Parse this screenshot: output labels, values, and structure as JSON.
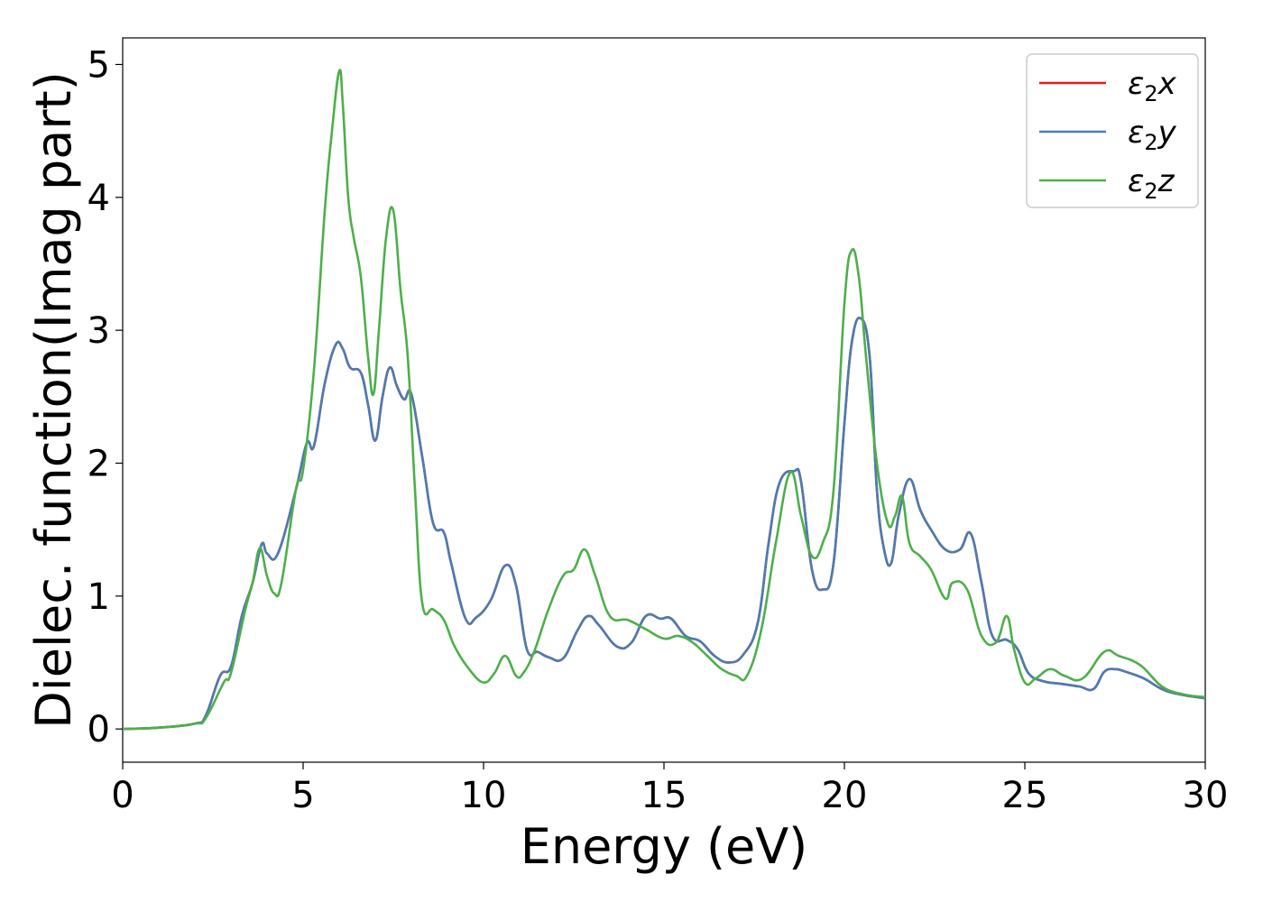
{
  "chart_data": {
    "type": "line",
    "title": "",
    "xlabel": "Energy (eV)",
    "ylabel": "Dielec. function(Imag part)",
    "xlim": [
      0,
      30
    ],
    "ylim": [
      -0.25,
      5.2
    ],
    "xticks": [
      0,
      5,
      10,
      15,
      20,
      25,
      30
    ],
    "xtick_labels": [
      "0",
      "5",
      "10",
      "15",
      "20",
      "25",
      "30"
    ],
    "yticks": [
      0,
      1,
      2,
      3,
      4,
      5
    ],
    "ytick_labels": [
      "0",
      "1",
      "2",
      "3",
      "4",
      "5"
    ],
    "grid": false,
    "legend_position": "top-right",
    "series": [
      {
        "name": "ε2x",
        "legend_base": "ε",
        "legend_sub": "2",
        "legend_suffix": "x",
        "color": "#e41a1c",
        "x": [
          0,
          1,
          2,
          2.3,
          2.7,
          3.0,
          3.3,
          3.6,
          3.85,
          4.0,
          4.3,
          4.8,
          5.1,
          5.3,
          5.6,
          5.9,
          6.1,
          6.3,
          6.6,
          6.8,
          7.0,
          7.2,
          7.4,
          7.6,
          7.8,
          8.0,
          8.3,
          8.6,
          8.9,
          9.1,
          9.5,
          9.8,
          10.2,
          10.6,
          10.9,
          11.2,
          11.5,
          11.8,
          12.2,
          12.6,
          12.9,
          13.2,
          13.7,
          14.1,
          14.5,
          14.9,
          15.2,
          15.6,
          16.0,
          16.4,
          16.8,
          17.2,
          17.6,
          17.9,
          18.2,
          18.6,
          18.8,
          19.1,
          19.4,
          19.7,
          20.0,
          20.2,
          20.45,
          20.7,
          20.9,
          21.1,
          21.3,
          21.5,
          21.8,
          22.1,
          22.4,
          22.8,
          23.2,
          23.5,
          23.8,
          24.1,
          24.5,
          24.8,
          25.1,
          25.5,
          26.0,
          26.5,
          26.9,
          27.2,
          27.5,
          27.8,
          28.3,
          28.8,
          29.3,
          30
        ],
        "values": [
          0,
          0.01,
          0.04,
          0.1,
          0.4,
          0.47,
          0.85,
          1.1,
          1.39,
          1.32,
          1.32,
          1.8,
          2.15,
          2.13,
          2.6,
          2.89,
          2.86,
          2.72,
          2.68,
          2.44,
          2.17,
          2.5,
          2.72,
          2.58,
          2.48,
          2.52,
          2.05,
          1.55,
          1.48,
          1.25,
          0.83,
          0.84,
          0.97,
          1.23,
          1.08,
          0.6,
          0.58,
          0.54,
          0.53,
          0.74,
          0.85,
          0.78,
          0.62,
          0.65,
          0.85,
          0.83,
          0.83,
          0.7,
          0.66,
          0.55,
          0.5,
          0.56,
          0.8,
          1.4,
          1.85,
          1.94,
          1.86,
          1.2,
          1.05,
          1.25,
          2.3,
          2.9,
          3.09,
          2.8,
          1.8,
          1.35,
          1.25,
          1.6,
          1.88,
          1.65,
          1.5,
          1.35,
          1.35,
          1.47,
          1.1,
          0.7,
          0.67,
          0.6,
          0.42,
          0.36,
          0.34,
          0.32,
          0.3,
          0.43,
          0.45,
          0.43,
          0.38,
          0.3,
          0.26,
          0.23
        ]
      },
      {
        "name": "ε2y",
        "legend_base": "ε",
        "legend_sub": "2",
        "legend_suffix": "y",
        "color": "#4a7cb3",
        "x": [
          0,
          1,
          2,
          2.3,
          2.7,
          3.0,
          3.3,
          3.6,
          3.85,
          4.0,
          4.3,
          4.8,
          5.1,
          5.3,
          5.6,
          5.9,
          6.1,
          6.3,
          6.6,
          6.8,
          7.0,
          7.2,
          7.4,
          7.6,
          7.8,
          8.0,
          8.3,
          8.6,
          8.9,
          9.1,
          9.5,
          9.8,
          10.2,
          10.6,
          10.9,
          11.2,
          11.5,
          11.8,
          12.2,
          12.6,
          12.9,
          13.2,
          13.7,
          14.1,
          14.5,
          14.9,
          15.2,
          15.6,
          16.0,
          16.4,
          16.8,
          17.2,
          17.6,
          17.9,
          18.2,
          18.6,
          18.8,
          19.1,
          19.4,
          19.7,
          20.0,
          20.2,
          20.45,
          20.7,
          20.9,
          21.1,
          21.3,
          21.5,
          21.8,
          22.1,
          22.4,
          22.8,
          23.2,
          23.5,
          23.8,
          24.1,
          24.5,
          24.8,
          25.1,
          25.5,
          26.0,
          26.5,
          26.9,
          27.2,
          27.5,
          27.8,
          28.3,
          28.8,
          29.3,
          30
        ],
        "values": [
          0,
          0.01,
          0.04,
          0.1,
          0.4,
          0.47,
          0.85,
          1.1,
          1.39,
          1.32,
          1.32,
          1.8,
          2.15,
          2.13,
          2.6,
          2.89,
          2.86,
          2.72,
          2.68,
          2.44,
          2.17,
          2.5,
          2.72,
          2.58,
          2.48,
          2.52,
          2.05,
          1.55,
          1.48,
          1.25,
          0.83,
          0.84,
          0.97,
          1.23,
          1.08,
          0.6,
          0.58,
          0.54,
          0.53,
          0.74,
          0.85,
          0.78,
          0.62,
          0.65,
          0.85,
          0.83,
          0.83,
          0.7,
          0.66,
          0.55,
          0.5,
          0.56,
          0.8,
          1.4,
          1.85,
          1.94,
          1.86,
          1.2,
          1.05,
          1.25,
          2.3,
          2.9,
          3.09,
          2.8,
          1.8,
          1.35,
          1.25,
          1.6,
          1.88,
          1.65,
          1.5,
          1.35,
          1.35,
          1.47,
          1.1,
          0.7,
          0.67,
          0.6,
          0.42,
          0.36,
          0.34,
          0.32,
          0.3,
          0.43,
          0.45,
          0.43,
          0.38,
          0.3,
          0.26,
          0.23
        ]
      },
      {
        "name": "ε2z",
        "legend_base": "ε",
        "legend_sub": "2",
        "legend_suffix": "z",
        "color": "#4daf4a",
        "x": [
          0,
          1,
          2,
          2.3,
          2.8,
          3.0,
          3.4,
          3.6,
          3.8,
          4.0,
          4.2,
          4.4,
          4.8,
          5.0,
          5.3,
          5.6,
          5.8,
          6.0,
          6.1,
          6.25,
          6.4,
          6.6,
          6.8,
          6.95,
          7.1,
          7.3,
          7.5,
          7.7,
          7.9,
          8.1,
          8.3,
          8.6,
          8.9,
          9.2,
          9.6,
          10.0,
          10.3,
          10.6,
          10.9,
          11.1,
          11.4,
          11.8,
          12.2,
          12.5,
          12.8,
          13.1,
          13.5,
          14.0,
          14.5,
          15.0,
          15.4,
          15.8,
          16.2,
          16.6,
          17.0,
          17.3,
          17.7,
          18.1,
          18.5,
          18.8,
          19.1,
          19.4,
          19.7,
          20.0,
          20.2,
          20.4,
          20.6,
          20.9,
          21.2,
          21.4,
          21.6,
          21.8,
          22.1,
          22.4,
          22.8,
          23.0,
          23.4,
          23.8,
          24.2,
          24.5,
          24.7,
          25.0,
          25.3,
          25.7,
          26.1,
          26.6,
          27.2,
          27.6,
          28.2,
          28.8,
          29.4,
          30
        ],
        "values": [
          0,
          0.01,
          0.04,
          0.08,
          0.35,
          0.42,
          0.9,
          1.1,
          1.36,
          1.15,
          1.02,
          1.1,
          1.8,
          1.95,
          2.7,
          3.9,
          4.5,
          4.95,
          4.7,
          4.0,
          3.7,
          3.4,
          2.8,
          2.52,
          3.0,
          3.7,
          3.9,
          3.3,
          2.8,
          1.8,
          0.95,
          0.9,
          0.82,
          0.62,
          0.45,
          0.35,
          0.42,
          0.55,
          0.4,
          0.42,
          0.58,
          0.9,
          1.15,
          1.2,
          1.35,
          1.15,
          0.85,
          0.82,
          0.75,
          0.68,
          0.7,
          0.65,
          0.55,
          0.45,
          0.4,
          0.4,
          0.75,
          1.4,
          1.93,
          1.6,
          1.3,
          1.4,
          1.8,
          3.2,
          3.6,
          3.4,
          2.8,
          2.0,
          1.55,
          1.6,
          1.75,
          1.4,
          1.3,
          1.2,
          0.98,
          1.1,
          1.05,
          0.7,
          0.65,
          0.85,
          0.6,
          0.35,
          0.38,
          0.45,
          0.4,
          0.38,
          0.58,
          0.55,
          0.48,
          0.32,
          0.26,
          0.24
        ]
      }
    ]
  }
}
